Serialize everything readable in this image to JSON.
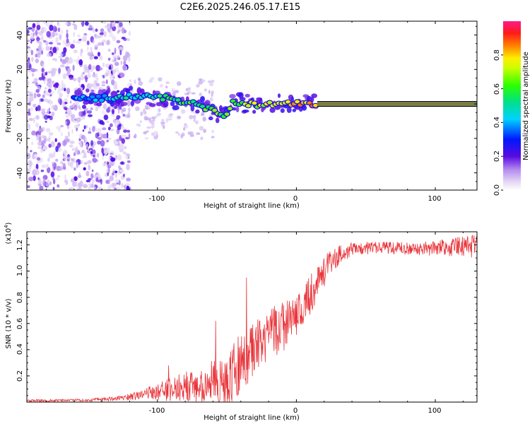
{
  "title": "C2E6.2025.246.05.17.E15",
  "colors": {
    "snr_line": "#e8343a",
    "axis": "#000000",
    "background": "#ffffff"
  },
  "chart_data": [
    {
      "type": "heatmap",
      "title": "C2E6.2025.246.05.17.E15",
      "xlabel": "Height of straight line (km)",
      "ylabel": "Frequency (Hz)",
      "xlim": [
        -194,
        130
      ],
      "ylim": [
        -50,
        48
      ],
      "x_ticks": [
        -100,
        0,
        100
      ],
      "y_ticks": [
        -40,
        -20,
        0,
        20,
        40
      ],
      "x_tick_labels": [
        "-100",
        "0",
        "100"
      ],
      "y_tick_labels": [
        "-40",
        "-20",
        "0",
        "20",
        "40"
      ],
      "colorbar": {
        "label": "Normalized spectral amplitude",
        "range": [
          0,
          1
        ],
        "ticks": [
          0.0,
          0.2,
          0.4,
          0.6,
          0.8
        ],
        "tick_labels": [
          "0.0",
          "0.2",
          "0.4",
          "0.6",
          "0.8"
        ]
      },
      "features": {
        "noise_region_x": [
          -194,
          -120
        ],
        "trace": [
          {
            "x": -160,
            "y": 3
          },
          {
            "x": -140,
            "y": 3
          },
          {
            "x": -120,
            "y": 5
          },
          {
            "x": -100,
            "y": 4
          },
          {
            "x": -90,
            "y": 3
          },
          {
            "x": -80,
            "y": 1
          },
          {
            "x": -70,
            "y": -1
          },
          {
            "x": -60,
            "y": -4
          },
          {
            "x": -52,
            "y": -7
          },
          {
            "x": -45,
            "y": 1
          },
          {
            "x": -35,
            "y": 0
          },
          {
            "x": -25,
            "y": -1
          },
          {
            "x": -15,
            "y": 0
          },
          {
            "x": 0,
            "y": 0
          },
          {
            "x": 15,
            "y": 0
          }
        ],
        "carrier_band_x": [
          15,
          130
        ],
        "carrier_band_y": 0
      }
    },
    {
      "type": "line",
      "xlabel": "Height of straight line (km)",
      "ylabel": "SNR (10 * v/v)",
      "y_multiplier": "(x10",
      "y_multiplier_exponent": "4",
      "y_multiplier_close": ")",
      "xlim": [
        -194,
        130
      ],
      "ylim": [
        0,
        1.3
      ],
      "x_ticks": [
        -100,
        0,
        100
      ],
      "y_ticks": [
        0.2,
        0.4,
        0.6,
        0.8,
        1.0,
        1.2
      ],
      "x_tick_labels": [
        "-100",
        "0",
        "100"
      ],
      "y_tick_labels": [
        "0.2",
        "0.4",
        "0.6",
        "0.8",
        "1.0",
        "1.2"
      ],
      "series": [
        {
          "name": "SNR",
          "envelope": [
            {
              "x": -194,
              "mean": 0.01,
              "amp": 0.01
            },
            {
              "x": -150,
              "mean": 0.015,
              "amp": 0.01
            },
            {
              "x": -125,
              "mean": 0.03,
              "amp": 0.02
            },
            {
              "x": -110,
              "mean": 0.06,
              "amp": 0.04
            },
            {
              "x": -95,
              "mean": 0.09,
              "amp": 0.08
            },
            {
              "x": -80,
              "mean": 0.12,
              "amp": 0.12
            },
            {
              "x": -70,
              "mean": 0.12,
              "amp": 0.12
            },
            {
              "x": -60,
              "mean": 0.15,
              "amp": 0.18
            },
            {
              "x": -50,
              "mean": 0.18,
              "amp": 0.2
            },
            {
              "x": -40,
              "mean": 0.3,
              "amp": 0.25
            },
            {
              "x": -30,
              "mean": 0.42,
              "amp": 0.2
            },
            {
              "x": -20,
              "mean": 0.5,
              "amp": 0.2
            },
            {
              "x": -10,
              "mean": 0.58,
              "amp": 0.2
            },
            {
              "x": 0,
              "mean": 0.65,
              "amp": 0.15
            },
            {
              "x": 10,
              "mean": 0.82,
              "amp": 0.15
            },
            {
              "x": 20,
              "mean": 1.0,
              "amp": 0.12
            },
            {
              "x": 30,
              "mean": 1.12,
              "amp": 0.08
            },
            {
              "x": 40,
              "mean": 1.17,
              "amp": 0.05
            },
            {
              "x": 60,
              "mean": 1.18,
              "amp": 0.05
            },
            {
              "x": 90,
              "mean": 1.17,
              "amp": 0.05
            },
            {
              "x": 110,
              "mean": 1.18,
              "amp": 0.07
            },
            {
              "x": 130,
              "mean": 1.19,
              "amp": 0.09
            }
          ],
          "spikes": [
            {
              "x": -36,
              "y": 0.95
            },
            {
              "x": -58,
              "y": 0.62
            },
            {
              "x": -45,
              "y": 0.45
            },
            {
              "x": -92,
              "y": 0.28
            }
          ]
        }
      ]
    }
  ]
}
